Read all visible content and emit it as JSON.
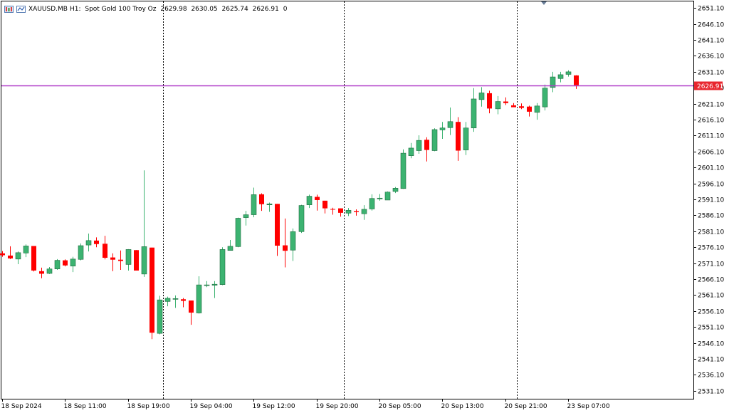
{
  "header": {
    "symbol": "XAUUSD.MB",
    "timeframe": "H1:",
    "description": "Spot Gold 100 Troy Oz",
    "ohlc": [
      "2629.98",
      "2630.05",
      "2625.74",
      "2626.91"
    ],
    "ticks": "0"
  },
  "current_price_label": "2626.91",
  "colors": {
    "bull": "#3cb371",
    "bear": "#ff0000",
    "price_line": "#b03cc8",
    "price_tag": "#e8262e",
    "grid": "#000000"
  },
  "chart_data": {
    "type": "candlestick",
    "ylim": [
      2528.6,
      2653.4
    ],
    "yticks": [
      "2651.10",
      "2646.10",
      "2641.10",
      "2636.10",
      "2631.10",
      "2626.10",
      "2621.10",
      "2616.10",
      "2611.10",
      "2606.10",
      "2601.10",
      "2596.10",
      "2591.10",
      "2586.10",
      "2581.10",
      "2576.10",
      "2571.10",
      "2566.10",
      "2561.10",
      "2556.10",
      "2551.10",
      "2546.10",
      "2541.10",
      "2536.10",
      "2531.10"
    ],
    "xticks": [
      "18 Sep 2024",
      "18 Sep 11:00",
      "18 Sep 19:00",
      "19 Sep 04:00",
      "19 Sep 12:00",
      "19 Sep 20:00",
      "20 Sep 05:00",
      "20 Sep 13:00",
      "20 Sep 21:00",
      "23 Sep 07:00"
    ],
    "xtick_bars": [
      0,
      8,
      16,
      24,
      32,
      40,
      48,
      56,
      64,
      72
    ],
    "session_breaks_after_bar": [
      20.5,
      43.5,
      65.5
    ],
    "candles": [
      [
        2574.2,
        2574.9,
        2573.1,
        2573.6
      ],
      [
        2573.5,
        2576.4,
        2572.4,
        2572.6
      ],
      [
        2572.4,
        2574.8,
        2570.8,
        2574.4
      ],
      [
        2574.3,
        2577.0,
        2573.0,
        2576.5
      ],
      [
        2576.5,
        2576.5,
        2568.5,
        2568.8
      ],
      [
        2568.6,
        2569.7,
        2566.4,
        2567.8
      ],
      [
        2567.9,
        2569.9,
        2567.7,
        2569.3
      ],
      [
        2569.3,
        2572.4,
        2569.0,
        2572.0
      ],
      [
        2572.0,
        2572.3,
        2570.1,
        2570.4
      ],
      [
        2570.2,
        2573.1,
        2568.3,
        2572.4
      ],
      [
        2572.3,
        2577.3,
        2572.0,
        2576.6
      ],
      [
        2576.8,
        2580.4,
        2574.8,
        2578.2
      ],
      [
        2578.2,
        2579.2,
        2576.1,
        2577.1
      ],
      [
        2577.2,
        2579.7,
        2572.3,
        2572.8
      ],
      [
        2572.9,
        2574.2,
        2568.6,
        2572.2
      ],
      [
        2572.2,
        2575.1,
        2569.0,
        2571.8
      ],
      [
        2570.7,
        2575.5,
        2568.8,
        2575.4
      ],
      [
        2575.2,
        2575.2,
        2569.8,
        2568.8
      ],
      [
        2567.7,
        2600.2,
        2566.8,
        2576.3
      ],
      [
        2576.0,
        2576.0,
        2547.3,
        2549.3
      ],
      [
        2549.1,
        2560.9,
        2548.8,
        2559.6
      ],
      [
        2559.1,
        2560.6,
        2557.6,
        2560.1
      ],
      [
        2560.0,
        2561.0,
        2557.1,
        2560.0
      ],
      [
        2559.8,
        2560.2,
        2557.3,
        2559.3
      ],
      [
        2559.4,
        2559.4,
        2551.8,
        2555.6
      ],
      [
        2555.5,
        2567.0,
        2555.3,
        2564.3
      ],
      [
        2564.2,
        2565.5,
        2563.6,
        2564.3
      ],
      [
        2564.2,
        2565.5,
        2560.2,
        2564.5
      ],
      [
        2564.4,
        2576.1,
        2564.2,
        2575.4
      ],
      [
        2575.1,
        2578.4,
        2575.1,
        2576.4
      ],
      [
        2576.3,
        2585.4,
        2576.1,
        2585.2
      ],
      [
        2585.4,
        2587.5,
        2582.9,
        2586.3
      ],
      [
        2586.3,
        2594.8,
        2585.5,
        2592.6
      ],
      [
        2592.7,
        2593.0,
        2587.5,
        2589.6
      ],
      [
        2589.4,
        2590.1,
        2587.2,
        2589.7
      ],
      [
        2589.7,
        2589.7,
        2573.4,
        2576.6
      ],
      [
        2576.7,
        2585.1,
        2569.8,
        2575.0
      ],
      [
        2575.2,
        2582.0,
        2571.8,
        2581.0
      ],
      [
        2581.0,
        2589.4,
        2580.6,
        2589.2
      ],
      [
        2589.4,
        2592.6,
        2588.4,
        2592.1
      ],
      [
        2591.9,
        2592.6,
        2587.6,
        2590.9
      ],
      [
        2590.7,
        2590.7,
        2586.7,
        2588.3
      ],
      [
        2588.1,
        2588.5,
        2586.3,
        2587.9
      ],
      [
        2588.3,
        2588.3,
        2585.7,
        2586.9
      ],
      [
        2586.8,
        2588.4,
        2585.9,
        2587.7
      ],
      [
        2587.4,
        2588.0,
        2586.0,
        2587.1
      ],
      [
        2586.6,
        2589.3,
        2584.7,
        2588.0
      ],
      [
        2588.1,
        2592.7,
        2587.6,
        2591.4
      ],
      [
        2591.5,
        2592.8,
        2590.7,
        2591.5
      ],
      [
        2590.9,
        2593.6,
        2590.9,
        2593.4
      ],
      [
        2593.6,
        2595.0,
        2593.1,
        2594.6
      ],
      [
        2594.5,
        2606.8,
        2594.4,
        2605.6
      ],
      [
        2604.8,
        2608.8,
        2604.0,
        2607.2
      ],
      [
        2606.4,
        2611.2,
        2605.4,
        2609.6
      ],
      [
        2609.8,
        2610.6,
        2603.0,
        2606.6
      ],
      [
        2606.4,
        2613.4,
        2606.2,
        2613.0
      ],
      [
        2612.9,
        2615.4,
        2610.1,
        2613.5
      ],
      [
        2613.6,
        2619.9,
        2611.3,
        2615.5
      ],
      [
        2615.4,
        2616.9,
        2603.2,
        2606.4
      ],
      [
        2606.6,
        2615.4,
        2605.0,
        2613.5
      ],
      [
        2613.5,
        2626.0,
        2612.3,
        2622.6
      ],
      [
        2622.4,
        2626.3,
        2620.2,
        2624.5
      ],
      [
        2624.4,
        2625.2,
        2618.1,
        2619.6
      ],
      [
        2619.5,
        2623.5,
        2617.8,
        2621.8
      ],
      [
        2621.8,
        2623.1,
        2620.7,
        2621.3
      ],
      [
        2620.6,
        2621.3,
        2620.2,
        2620.0
      ],
      [
        2620.3,
        2621.2,
        2619.4,
        2619.8
      ],
      [
        2620.2,
        2620.5,
        2617.1,
        2618.6
      ],
      [
        2618.4,
        2621.3,
        2616.1,
        2620.4
      ],
      [
        2620.1,
        2627.1,
        2619.0,
        2626.0
      ],
      [
        2626.2,
        2631.1,
        2624.7,
        2629.5
      ],
      [
        2629.0,
        2631.1,
        2627.8,
        2630.2
      ],
      [
        2630.3,
        2631.6,
        2629.6,
        2631.1
      ],
      [
        2629.98,
        2630.05,
        2625.74,
        2626.91
      ]
    ]
  }
}
